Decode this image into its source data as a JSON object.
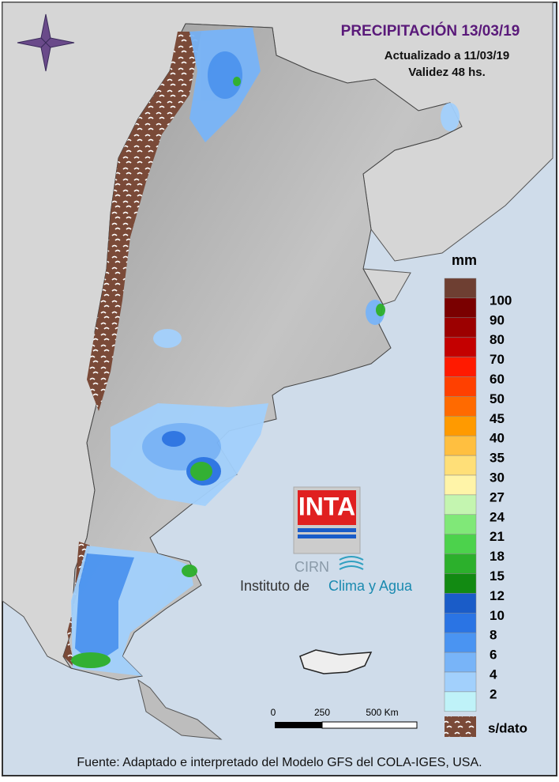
{
  "header": {
    "title": "PRECIPITACIÓN 13/03/19",
    "updated": "Actualizado a 11/03/19",
    "validity": "Validez 48 hs."
  },
  "legend": {
    "unit": "mm",
    "top_color": "#6e3f32",
    "levels": [
      {
        "value": 100,
        "color": "#7a0000"
      },
      {
        "value": 90,
        "color": "#9c0000"
      },
      {
        "value": 80,
        "color": "#c40000"
      },
      {
        "value": 70,
        "color": "#ff1a00"
      },
      {
        "value": 60,
        "color": "#ff4000"
      },
      {
        "value": 50,
        "color": "#ff6a00"
      },
      {
        "value": 45,
        "color": "#ff9a00"
      },
      {
        "value": 40,
        "color": "#ffbf40"
      },
      {
        "value": 35,
        "color": "#ffdf78"
      },
      {
        "value": 30,
        "color": "#fff4a8"
      },
      {
        "value": 27,
        "color": "#c4f5b0"
      },
      {
        "value": 24,
        "color": "#80e878"
      },
      {
        "value": 21,
        "color": "#4cd24c"
      },
      {
        "value": 18,
        "color": "#2cb02c"
      },
      {
        "value": 15,
        "color": "#128a12"
      },
      {
        "value": 12,
        "color": "#1a5cc8"
      },
      {
        "value": 10,
        "color": "#2a74e4"
      },
      {
        "value": 8,
        "color": "#4a94f2"
      },
      {
        "value": 6,
        "color": "#78b4f8"
      },
      {
        "value": 4,
        "color": "#a2d0fc"
      },
      {
        "value": 2,
        "color": "#bff2f8"
      }
    ],
    "no_data": "s/dato"
  },
  "scale": {
    "labels": [
      "0",
      "250",
      "500 Km"
    ]
  },
  "logo": {
    "name": "INTA",
    "unit": "CIRN",
    "institute": "Instituto de",
    "institute_highlight": "Clima y Agua"
  },
  "footer": {
    "source": "Fuente: Adaptado e interpretado del Modelo GFS del COLA-IGES, USA."
  }
}
